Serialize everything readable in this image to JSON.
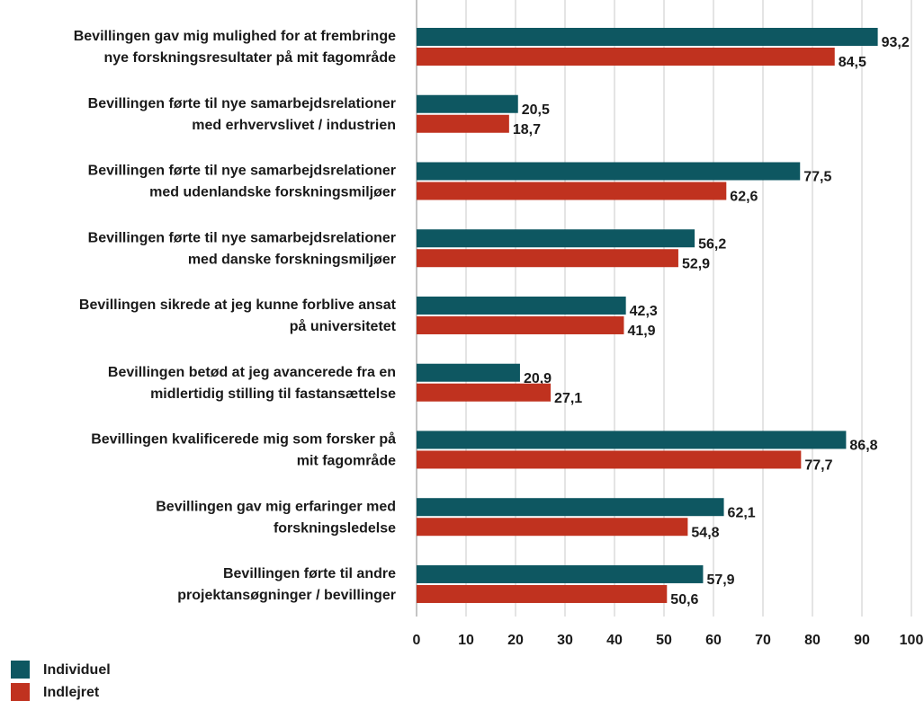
{
  "chart_data": {
    "type": "bar",
    "orientation": "horizontal",
    "categories": [
      [
        "Bevillingen gav mig mulighed for at frembringe",
        "nye forskningsresultater på mit fagområde"
      ],
      [
        "Bevillingen førte til nye samarbejdsrelationer",
        "med erhvervslivet / industrien"
      ],
      [
        "Bevillingen førte til nye samarbejdsrelationer",
        "med udenlandske forskningsmiljøer"
      ],
      [
        "Bevillingen førte til nye samarbejdsrelationer",
        "med danske forskningsmiljøer"
      ],
      [
        "Bevillingen sikrede at jeg kunne forblive ansat",
        "på universitetet"
      ],
      [
        "Bevillingen betød at jeg avancerede fra en",
        "midlertidig stilling til fastansættelse"
      ],
      [
        "Bevillingen kvalificerede mig som forsker på",
        "mit fagområde"
      ],
      [
        "Bevillingen gav mig erfaringer med",
        "forskningsledelse"
      ],
      [
        "Bevillingen førte til andre",
        "projektansøgninger / bevillinger"
      ]
    ],
    "series": [
      {
        "name": "Individuel",
        "color": "#0e5761",
        "values": [
          93.2,
          20.5,
          77.5,
          56.2,
          42.3,
          20.9,
          86.8,
          62.1,
          57.9
        ],
        "value_labels": [
          "93,2",
          "20,5",
          "77,5",
          "56,2",
          "42,3",
          "20,9",
          "86,8",
          "62,1",
          "57,9"
        ]
      },
      {
        "name": "Indlejret",
        "color": "#c0321f",
        "values": [
          84.5,
          18.7,
          62.6,
          52.9,
          41.9,
          27.1,
          77.7,
          54.8,
          50.6
        ],
        "value_labels": [
          "84,5",
          "18,7",
          "62,6",
          "52,9",
          "41,9",
          "27,1",
          "77,7",
          "54,8",
          "50,6"
        ]
      }
    ],
    "xlim": [
      0,
      100
    ],
    "xticks": [
      0,
      10,
      20,
      30,
      40,
      50,
      60,
      70,
      80,
      90,
      100
    ],
    "grid": true,
    "legend": "bottom-left"
  }
}
